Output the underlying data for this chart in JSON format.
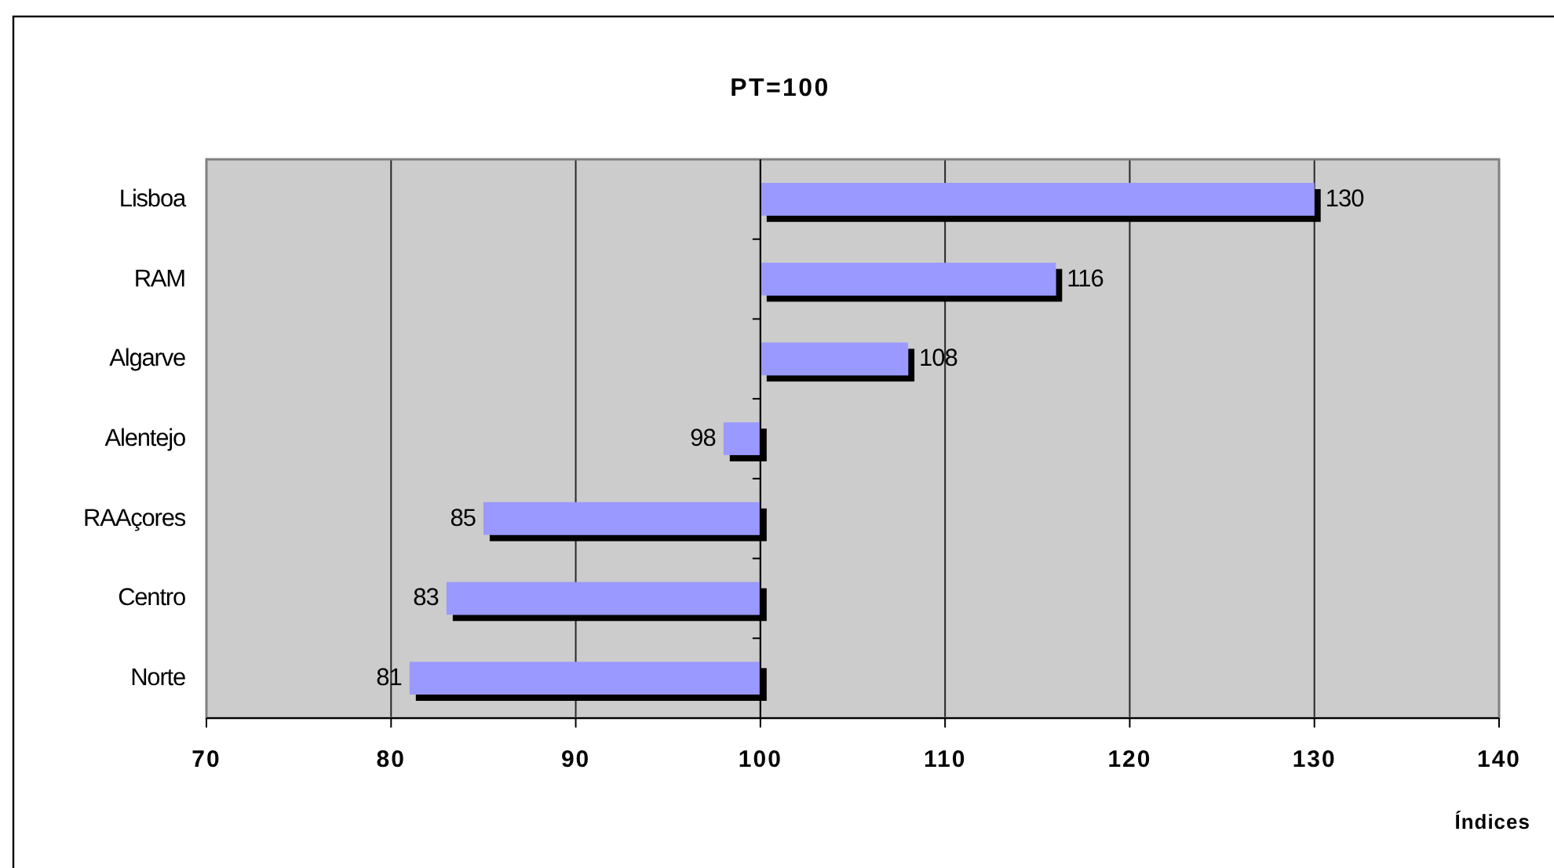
{
  "chart_data": {
    "type": "bar",
    "orientation": "horizontal",
    "title": "PT=100",
    "xlabel": "Índices",
    "categories": [
      "Lisboa",
      "RAM",
      "Algarve",
      "Alentejo",
      "RAAçores",
      "Centro",
      "Norte"
    ],
    "base": [
      100,
      100,
      100,
      100,
      100,
      100,
      100
    ],
    "values": [
      30,
      16,
      8,
      -2,
      -15,
      -17,
      -19
    ],
    "value_labels": [
      "130",
      "116",
      "108",
      "98",
      "85",
      "83",
      "81"
    ],
    "color": "#9999ff",
    "xlim": [
      70,
      140
    ],
    "xticks": [
      70,
      80,
      90,
      100,
      110,
      120,
      130,
      140
    ],
    "grid": "x",
    "ref_lines": [
      {
        "axis": "x",
        "value": 100,
        "color": "#000000"
      }
    ]
  }
}
